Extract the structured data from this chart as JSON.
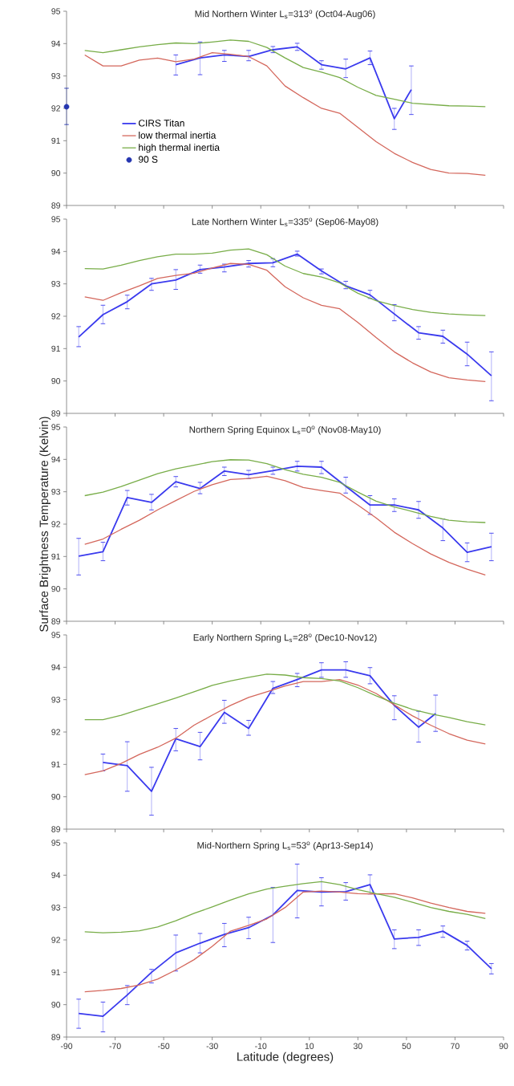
{
  "chart_data": [
    {
      "type": "line",
      "title": "Mid Northern Winter L$_{s}$=313$^{o}$ (Oct04-Aug06)",
      "xlim": [
        -90,
        90
      ],
      "xticks": [
        -90,
        -70,
        -50,
        -30,
        -10,
        10,
        30,
        50,
        70,
        90
      ],
      "ylim": [
        89,
        95
      ],
      "yticks": [
        89,
        90,
        91,
        92,
        93,
        94,
        95
      ],
      "tick_labels": "y",
      "legend": "left",
      "series": [
        {
          "name": "CIRS Titan",
          "color": "#3a3aee",
          "x": [
            -45,
            -35,
            -25,
            -15,
            -5,
            5,
            15,
            25,
            35,
            45,
            52
          ],
          "values": [
            93.35,
            93.56,
            93.65,
            93.6,
            93.81,
            93.9,
            93.35,
            93.22,
            93.56,
            91.68,
            92.58
          ],
          "errors": [
            [
              93.03,
              93.65
            ],
            [
              93.04,
              94.05
            ],
            [
              93.45,
              93.79
            ],
            [
              93.47,
              93.79
            ],
            [
              93.72,
              93.91
            ],
            [
              93.79,
              94.01
            ],
            [
              93.21,
              93.47
            ],
            [
              92.95,
              93.52
            ],
            [
              93.35,
              93.77
            ],
            [
              91.35,
              92.0
            ],
            [
              91.81,
              93.31
            ]
          ]
        },
        {
          "name": "low thermal inertia",
          "color": "#d4675c",
          "x": [
            -82.5,
            -75,
            -67.5,
            -60,
            -52.5,
            -45,
            -37.5,
            -30,
            -22.5,
            -15,
            -7.5,
            0,
            7.5,
            15,
            22.5,
            30,
            37.5,
            45,
            52.5,
            60,
            67.5,
            75,
            82.5
          ],
          "values": [
            93.65,
            93.31,
            93.31,
            93.49,
            93.55,
            93.44,
            93.52,
            93.72,
            93.67,
            93.6,
            93.31,
            92.69,
            92.33,
            92.0,
            91.85,
            91.41,
            90.97,
            90.61,
            90.33,
            90.11,
            90.0,
            89.99,
            89.93
          ]
        },
        {
          "name": "high thermal inertia",
          "color": "#78ad48",
          "x": [
            -82.5,
            -75,
            -67.5,
            -60,
            -52.5,
            -45,
            -37.5,
            -30,
            -22.5,
            -15,
            -7.5,
            0,
            7.5,
            15,
            22.5,
            30,
            37.5,
            45,
            52.5,
            60,
            67.5,
            75,
            82.5
          ],
          "values": [
            93.79,
            93.72,
            93.81,
            93.9,
            93.97,
            94.02,
            94.0,
            94.05,
            94.11,
            94.07,
            93.88,
            93.56,
            93.26,
            93.12,
            92.95,
            92.65,
            92.4,
            92.28,
            92.16,
            92.12,
            92.08,
            92.07,
            92.05
          ]
        },
        {
          "name": "90 S",
          "type": "scatter",
          "marker": "circle",
          "color": "#2536b0",
          "x": [
            -90
          ],
          "values": [
            92.05
          ],
          "errors": [
            [
              91.5,
              92.62
            ]
          ]
        }
      ]
    },
    {
      "type": "line",
      "title": "Late Northern Winter L$_{s}$=335$^{o}$ (Sep06-May08)",
      "xlim": [
        -90,
        90
      ],
      "xticks": [
        -90,
        -70,
        -50,
        -30,
        -10,
        10,
        30,
        50,
        70,
        90
      ],
      "ylim": [
        89,
        95
      ],
      "yticks": [
        89,
        90,
        91,
        92,
        93,
        94,
        95
      ],
      "tick_labels": "y",
      "series": [
        {
          "color": "#3a3aee",
          "x": [
            -85,
            -75,
            -65,
            -55,
            -45,
            -35,
            -25,
            -15,
            -5,
            5,
            15,
            25,
            35,
            45,
            55,
            65,
            75,
            85
          ],
          "values": [
            91.36,
            92.05,
            92.45,
            93.0,
            93.12,
            93.44,
            93.52,
            93.63,
            93.65,
            93.92,
            93.4,
            92.94,
            92.66,
            92.07,
            91.49,
            91.38,
            90.83,
            90.16
          ],
          "errors": [
            [
              91.06,
              91.68
            ],
            [
              91.77,
              92.34
            ],
            [
              92.23,
              92.65
            ],
            [
              92.8,
              93.17
            ],
            [
              92.83,
              93.44
            ],
            [
              93.33,
              93.58
            ],
            [
              93.37,
              93.61
            ],
            [
              93.52,
              93.72
            ],
            [
              93.53,
              93.78
            ],
            [
              93.86,
              94.01
            ],
            [
              93.31,
              93.46
            ],
            [
              92.85,
              93.08
            ],
            [
              92.55,
              92.8
            ],
            [
              91.86,
              92.36
            ],
            [
              91.29,
              91.68
            ],
            [
              91.17,
              91.57
            ],
            [
              90.47,
              91.2
            ],
            [
              89.39,
              90.9
            ]
          ]
        },
        {
          "color": "#d4675c",
          "x": [
            -82.5,
            -75,
            -67.5,
            -60,
            -52.5,
            -45,
            -37.5,
            -30,
            -22.5,
            -15,
            -7.5,
            0,
            7.5,
            15,
            22.5,
            30,
            37.5,
            45,
            52.5,
            60,
            67.5,
            75,
            82.5
          ],
          "values": [
            92.6,
            92.49,
            92.73,
            92.94,
            93.17,
            93.26,
            93.33,
            93.49,
            93.63,
            93.6,
            93.42,
            92.91,
            92.57,
            92.34,
            92.23,
            91.81,
            91.34,
            90.9,
            90.56,
            90.28,
            90.1,
            90.03,
            89.98
          ]
        },
        {
          "color": "#78ad48",
          "x": [
            -82.5,
            -75,
            -67.5,
            -60,
            -52.5,
            -45,
            -37.5,
            -30,
            -22.5,
            -15,
            -7.5,
            0,
            7.5,
            15,
            22.5,
            30,
            37.5,
            45,
            52.5,
            60,
            67.5,
            75,
            82.5
          ],
          "values": [
            93.47,
            93.46,
            93.58,
            93.72,
            93.84,
            93.92,
            93.92,
            93.95,
            94.04,
            94.08,
            93.9,
            93.55,
            93.32,
            93.21,
            93.03,
            92.71,
            92.48,
            92.33,
            92.21,
            92.12,
            92.07,
            92.04,
            92.02
          ]
        }
      ]
    },
    {
      "type": "line",
      "title": "Northern Spring Equinox L$_{s}$=0$^{o}$ (Nov08-May10)",
      "ylabel": "Surface Brightness Temperature (Kelvin)",
      "xlim": [
        -90,
        90
      ],
      "xticks": [
        -90,
        -70,
        -50,
        -30,
        -10,
        10,
        30,
        50,
        70,
        90
      ],
      "ylim": [
        89,
        95
      ],
      "yticks": [
        89,
        90,
        91,
        92,
        93,
        94,
        95
      ],
      "tick_labels": "y",
      "series": [
        {
          "color": "#3a3aee",
          "x": [
            -85,
            -75,
            -65,
            -55,
            -45,
            -35,
            -25,
            -15,
            -5,
            5,
            15,
            25,
            35,
            45,
            55,
            65,
            75,
            85
          ],
          "values": [
            91.01,
            91.15,
            92.82,
            92.67,
            93.31,
            93.1,
            93.64,
            93.53,
            93.65,
            93.79,
            93.76,
            93.17,
            92.59,
            92.59,
            92.44,
            91.88,
            91.13,
            91.3
          ],
          "errors": [
            [
              90.43,
              91.56
            ],
            [
              90.87,
              91.44
            ],
            [
              92.59,
              93.04
            ],
            [
              92.44,
              92.92
            ],
            [
              93.15,
              93.47
            ],
            [
              92.94,
              93.29
            ],
            [
              93.5,
              93.76
            ],
            [
              93.41,
              93.66
            ],
            [
              93.54,
              93.76
            ],
            [
              93.64,
              93.94
            ],
            [
              93.56,
              93.94
            ],
            [
              92.96,
              93.45
            ],
            [
              92.3,
              92.88
            ],
            [
              92.39,
              92.78
            ],
            [
              92.18,
              92.7
            ],
            [
              91.49,
              92.16
            ],
            [
              90.84,
              91.42
            ],
            [
              90.87,
              91.72
            ]
          ]
        },
        {
          "color": "#d4675c",
          "x": [
            -82.5,
            -75,
            -67.5,
            -60,
            -52.5,
            -45,
            -37.5,
            -30,
            -22.5,
            -15,
            -7.5,
            0,
            7.5,
            15,
            22.5,
            30,
            37.5,
            45,
            52.5,
            60,
            67.5,
            75,
            82.5
          ],
          "values": [
            91.38,
            91.54,
            91.84,
            92.12,
            92.44,
            92.73,
            93.01,
            93.22,
            93.38,
            93.41,
            93.48,
            93.34,
            93.13,
            93.04,
            92.96,
            92.59,
            92.19,
            91.75,
            91.4,
            91.08,
            90.82,
            90.61,
            90.43
          ]
        },
        {
          "color": "#78ad48",
          "x": [
            -82.5,
            -75,
            -67.5,
            -60,
            -52.5,
            -45,
            -37.5,
            -30,
            -22.5,
            -15,
            -7.5,
            0,
            7.5,
            15,
            22.5,
            30,
            37.5,
            45,
            52.5,
            60,
            67.5,
            75,
            82.5
          ],
          "values": [
            92.88,
            92.99,
            93.16,
            93.36,
            93.56,
            93.71,
            93.82,
            93.93,
            93.99,
            93.98,
            93.87,
            93.68,
            93.54,
            93.45,
            93.29,
            92.99,
            92.71,
            92.53,
            92.39,
            92.24,
            92.12,
            92.07,
            92.05
          ]
        }
      ]
    },
    {
      "type": "line",
      "title": "Early Northern Spring L$_{s}$=28$^{o}$ (Dec10-Nov12)",
      "xlim": [
        -90,
        90
      ],
      "xticks": [
        -90,
        -70,
        -50,
        -30,
        -10,
        10,
        30,
        50,
        70,
        90
      ],
      "ylim": [
        89,
        95
      ],
      "yticks": [
        89,
        90,
        91,
        92,
        93,
        94,
        95
      ],
      "tick_labels": "y",
      "series": [
        {
          "color": "#3a3aee",
          "x": [
            -75,
            -65,
            -55,
            -45,
            -35,
            -25,
            -15,
            -5,
            5,
            15,
            25,
            35,
            45,
            55,
            62
          ],
          "values": [
            91.06,
            90.96,
            90.17,
            91.79,
            91.55,
            92.61,
            92.11,
            93.35,
            93.62,
            93.92,
            93.92,
            93.74,
            92.82,
            92.15,
            92.57
          ],
          "errors": [
            [
              90.8,
              91.32
            ],
            [
              90.17,
              91.7
            ],
            [
              89.43,
              90.91
            ],
            [
              91.42,
              92.11
            ],
            [
              91.14,
              91.99
            ],
            [
              92.27,
              92.98
            ],
            [
              91.9,
              92.36
            ],
            [
              93.19,
              93.56
            ],
            [
              93.4,
              93.81
            ],
            [
              93.69,
              94.14
            ],
            [
              93.69,
              94.17
            ],
            [
              93.49,
              93.99
            ],
            [
              92.38,
              93.12
            ],
            [
              91.69,
              92.64
            ],
            [
              92.02,
              93.14
            ]
          ]
        },
        {
          "color": "#d4675c",
          "x": [
            -82.5,
            -75,
            -67.5,
            -60,
            -52.5,
            -45,
            -37.5,
            -30,
            -22.5,
            -15,
            -7.5,
            0,
            7.5,
            15,
            22.5,
            30,
            37.5,
            45,
            52.5,
            60,
            67.5,
            75,
            82.5
          ],
          "values": [
            90.68,
            90.8,
            91.03,
            91.31,
            91.53,
            91.81,
            92.21,
            92.52,
            92.82,
            93.07,
            93.24,
            93.42,
            93.56,
            93.56,
            93.62,
            93.45,
            93.19,
            92.84,
            92.5,
            92.21,
            91.95,
            91.75,
            91.63
          ]
        },
        {
          "color": "#78ad48",
          "x": [
            -82.5,
            -75,
            -67.5,
            -60,
            -52.5,
            -45,
            -37.5,
            -30,
            -22.5,
            -15,
            -7.5,
            0,
            7.5,
            15,
            22.5,
            30,
            37.5,
            45,
            52.5,
            60,
            67.5,
            75,
            82.5
          ],
          "values": [
            92.38,
            92.38,
            92.52,
            92.7,
            92.87,
            93.05,
            93.24,
            93.44,
            93.58,
            93.69,
            93.79,
            93.76,
            93.68,
            93.65,
            93.58,
            93.37,
            93.12,
            92.89,
            92.7,
            92.56,
            92.45,
            92.32,
            92.22
          ]
        }
      ]
    },
    {
      "type": "line",
      "title": "Mid-Northern Spring L$_{s}$=53$^{o}$ (Apr13-Sep14)",
      "xlabel": "Latitude (degrees)",
      "xlim": [
        -90,
        90
      ],
      "xticks": [
        -90,
        -70,
        -50,
        -30,
        -10,
        10,
        30,
        50,
        70,
        90
      ],
      "ylim": [
        89,
        95
      ],
      "yticks": [
        89,
        90,
        91,
        92,
        93,
        94,
        95
      ],
      "series": [
        {
          "color": "#3a3aee",
          "x": [
            -85,
            -75,
            -65,
            -55,
            -45,
            -35,
            -25,
            -15,
            -5,
            5,
            15,
            25,
            35,
            45,
            55,
            65,
            75,
            85
          ],
          "values": [
            89.73,
            89.64,
            90.3,
            91.0,
            91.6,
            91.9,
            92.17,
            92.38,
            92.77,
            93.53,
            93.48,
            93.49,
            93.71,
            92.03,
            92.08,
            92.27,
            91.83,
            91.11
          ],
          "errors": [
            [
              89.27,
              90.17
            ],
            [
              89.16,
              90.08
            ],
            [
              90.0,
              90.59
            ],
            [
              90.67,
              91.09
            ],
            [
              91.04,
              92.15
            ],
            [
              91.6,
              92.2
            ],
            [
              91.79,
              92.51
            ],
            [
              92.04,
              92.7
            ],
            [
              91.92,
              93.62
            ],
            [
              92.68,
              94.34
            ],
            [
              93.05,
              93.92
            ],
            [
              93.23,
              93.77
            ],
            [
              93.42,
              94.01
            ],
            [
              91.73,
              92.31
            ],
            [
              91.83,
              92.31
            ],
            [
              92.08,
              92.43
            ],
            [
              91.69,
              91.96
            ],
            [
              90.95,
              91.27
            ]
          ]
        },
        {
          "color": "#d4675c",
          "x": [
            -82.5,
            -75,
            -67.5,
            -60,
            -52.5,
            -45,
            -37.5,
            -30,
            -22.5,
            -15,
            -7.5,
            0,
            7.5,
            15,
            22.5,
            30,
            37.5,
            45,
            52.5,
            60,
            67.5,
            75,
            82.5
          ],
          "values": [
            90.4,
            90.44,
            90.5,
            90.61,
            90.79,
            91.07,
            91.39,
            91.8,
            92.27,
            92.45,
            92.65,
            93.0,
            93.48,
            93.51,
            93.48,
            93.43,
            93.42,
            93.43,
            93.3,
            93.14,
            93.0,
            92.88,
            92.82
          ]
        },
        {
          "color": "#78ad48",
          "x": [
            -82.5,
            -75,
            -67.5,
            -60,
            -52.5,
            -45,
            -37.5,
            -30,
            -22.5,
            -15,
            -7.5,
            0,
            7.5,
            15,
            22.5,
            30,
            37.5,
            45,
            52.5,
            60,
            67.5,
            75,
            82.5
          ],
          "values": [
            92.25,
            92.22,
            92.24,
            92.28,
            92.4,
            92.59,
            92.82,
            93.02,
            93.23,
            93.42,
            93.57,
            93.66,
            93.74,
            93.8,
            93.71,
            93.55,
            93.43,
            93.32,
            93.16,
            93.0,
            92.88,
            92.79,
            92.66
          ]
        }
      ]
    }
  ]
}
